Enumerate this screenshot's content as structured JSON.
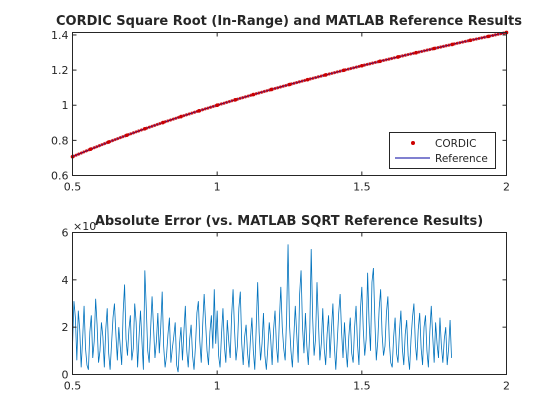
{
  "chart_data": [
    {
      "type": "line",
      "title": "CORDIC Square Root (In-Range) and MATLAB Reference Results",
      "xlabel": "",
      "ylabel": "",
      "xlim": [
        0.5,
        2
      ],
      "ylim": [
        0.6,
        1.414
      ],
      "x_ticks": [
        0.5,
        1,
        1.5,
        2
      ],
      "y_ticks": [
        0.6,
        0.8,
        1,
        1.2,
        1.4
      ],
      "x_tick_labels": [
        "0.5",
        "1",
        "1.5",
        "2"
      ],
      "y_tick_labels": [
        "0.6",
        "0.8",
        "1",
        "1.2",
        "1.4"
      ],
      "grid": false,
      "legend_position": "bottom-right",
      "series": [
        {
          "name": "CORDIC",
          "style": "marker",
          "color": "#cc0000",
          "x": [
            0.5,
            0.5625,
            0.625,
            0.6875,
            0.75,
            0.8125,
            0.875,
            0.9375,
            1,
            1.0625,
            1.125,
            1.1875,
            1.25,
            1.3125,
            1.375,
            1.4375,
            1.5,
            1.5625,
            1.625,
            1.6875,
            1.75,
            1.8125,
            1.875,
            1.9375,
            2
          ],
          "y": [
            0.7071,
            0.75,
            0.7906,
            0.8292,
            0.866,
            0.9014,
            0.9354,
            0.9682,
            1,
            1.0308,
            1.0607,
            1.0897,
            1.118,
            1.1456,
            1.1726,
            1.199,
            1.2247,
            1.25,
            1.2748,
            1.299,
            1.3229,
            1.3463,
            1.3693,
            1.3919,
            1.4142
          ]
        },
        {
          "name": "Reference",
          "style": "line",
          "color": "#0000a0",
          "x": [
            0.5,
            0.5625,
            0.625,
            0.6875,
            0.75,
            0.8125,
            0.875,
            0.9375,
            1,
            1.0625,
            1.125,
            1.1875,
            1.25,
            1.3125,
            1.375,
            1.4375,
            1.5,
            1.5625,
            1.625,
            1.6875,
            1.75,
            1.8125,
            1.875,
            1.9375,
            2
          ],
          "y": [
            0.7071,
            0.75,
            0.7906,
            0.8292,
            0.866,
            0.9014,
            0.9354,
            0.9682,
            1,
            1.0308,
            1.0607,
            1.0897,
            1.118,
            1.1456,
            1.1726,
            1.199,
            1.2247,
            1.25,
            1.2748,
            1.299,
            1.3229,
            1.3463,
            1.3693,
            1.3919,
            1.4142
          ]
        }
      ]
    },
    {
      "type": "line",
      "title": "Absolute Error (vs. MATLAB SQRT Reference Results)",
      "xlabel": "",
      "ylabel": "",
      "y_exponent_label": "×10",
      "xlim": [
        0.5,
        2
      ],
      "ylim": [
        0,
        6
      ],
      "x_ticks": [
        0.5,
        1,
        1.5,
        2
      ],
      "y_ticks": [
        0,
        2,
        4,
        6
      ],
      "x_tick_labels": [
        "0.5",
        "1",
        "1.5",
        "2"
      ],
      "y_tick_labels": [
        "0",
        "2",
        "4",
        "6"
      ],
      "grid": false,
      "series": [
        {
          "color": "#0072bd",
          "x_start": 0.5,
          "x_step": 0.005,
          "values": [
            1.2,
            3.1,
            2.4,
            0.6,
            2.7,
            1.9,
            0.3,
            1.5,
            2.9,
            1.1,
            0.4,
            0.2,
            1.8,
            2.5,
            0.7,
            1.4,
            3.2,
            2.1,
            0.5,
            1.0,
            2.2,
            1.6,
            0.3,
            1.9,
            2.8,
            0.9,
            0.2,
            1.3,
            2.4,
            3.0,
            1.7,
            0.6,
            2.0,
            1.2,
            0.4,
            2.6,
            3.8,
            1.5,
            0.8,
            1.9,
            2.5,
            0.6,
            1.1,
            3.0,
            2.2,
            0.3,
            1.6,
            2.7,
            1.4,
            0.2,
            4.4,
            2.8,
            1.0,
            0.5,
            1.9,
            3.3,
            2.0,
            0.7,
            1.4,
            2.6,
            0.9,
            2.0,
            3.5,
            1.2,
            0.3,
            0.8,
            1.7,
            2.4,
            0.5,
            1.1,
            1.6,
            2.2,
            0.4,
            0.1,
            1.3,
            2.0,
            0.6,
            1.8,
            2.9,
            1.0,
            0.3,
            1.5,
            2.1,
            0.8,
            0.2,
            1.2,
            2.6,
            3.1,
            1.4,
            0.5,
            2.1,
            3.4,
            2.2,
            1.0,
            0.4,
            1.8,
            2.5,
            1.1,
            3.6,
            1.3,
            2.7,
            0.8,
            0.3,
            1.7,
            2.8,
            1.2,
            0.5,
            2.3,
            1.4,
            0.7,
            2.5,
            3.6,
            1.9,
            0.6,
            1.2,
            2.8,
            3.5,
            1.3,
            0.4,
            1.6,
            2.1,
            0.9,
            0.3,
            1.5,
            2.4,
            1.0,
            0.2,
            2.0,
            3.9,
            1.8,
            0.6,
            1.3,
            2.6,
            0.8,
            0.2,
            1.1,
            2.2,
            1.5,
            0.4,
            1.9,
            2.7,
            1.2,
            0.5,
            2.3,
            3.7,
            2.0,
            1.1,
            0.6,
            2.4,
            5.5,
            2.1,
            1.0,
            0.3,
            1.6,
            2.9,
            1.7,
            0.5,
            3.4,
            4.4,
            2.0,
            0.9,
            2.6,
            1.2,
            0.4,
            1.8,
            5.3,
            2.4,
            0.8,
            1.5,
            3.9,
            2.2,
            0.6,
            1.3,
            2.8,
            1.1,
            0.4,
            1.7,
            2.5,
            0.7,
            1.9,
            3.0,
            1.2,
            0.2,
            1.4,
            2.6,
            3.4,
            1.8,
            0.7,
            2.2,
            1.1,
            0.3,
            1.6,
            2.4,
            0.9,
            0.5,
            2.0,
            2.9,
            1.3,
            0.4,
            2.7,
            3.7,
            1.9,
            0.8,
            1.5,
            4.3,
            2.2,
            1.0,
            3.9,
            4.5,
            2.3,
            0.6,
            1.4,
            2.8,
            3.6,
            1.7,
            0.8,
            1.2,
            2.6,
            3.3,
            1.4,
            0.5,
            0.3,
            1.6,
            2.4,
            0.9,
            0.5,
            1.8,
            2.7,
            1.1,
            0.4,
            1.7,
            2.3,
            0.8,
            0.2,
            1.5,
            2.4,
            3.0,
            1.3,
            0.6,
            1.9,
            2.6,
            1.1,
            0.4,
            2.0,
            2.5,
            1.0,
            0.3,
            1.8,
            2.9,
            1.6,
            0.5,
            2.2,
            1.3,
            0.7,
            2.4,
            1.2,
            0.5,
            1.5,
            2.0,
            0.4,
            1.1,
            2.3,
            0.7
          ]
        }
      ]
    }
  ],
  "legend": {
    "items": [
      {
        "label": "CORDIC",
        "marker": "dot",
        "color": "#cc0000"
      },
      {
        "label": "Reference",
        "marker": "line",
        "color": "#0000a0"
      }
    ]
  },
  "colors": {
    "axis": "#262626",
    "background": "#ffffff"
  }
}
